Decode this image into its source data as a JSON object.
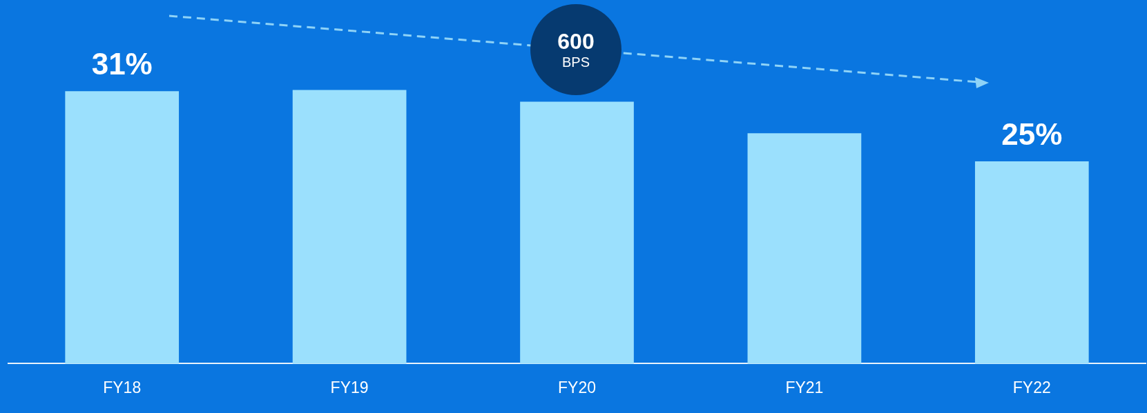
{
  "chart_data": {
    "type": "bar",
    "categories": [
      "FY18",
      "FY19",
      "FY20",
      "FY21",
      "FY22"
    ],
    "values": [
      31,
      31.1,
      30.1,
      27.4,
      25
    ],
    "color": "#9be0fd",
    "value_labels": [
      "31%",
      null,
      null,
      null,
      "25%"
    ],
    "ylim": [
      7.7,
      38.8
    ],
    "annotations": [
      "600",
      "BPS"
    ],
    "grid": false,
    "legend": false
  }
}
